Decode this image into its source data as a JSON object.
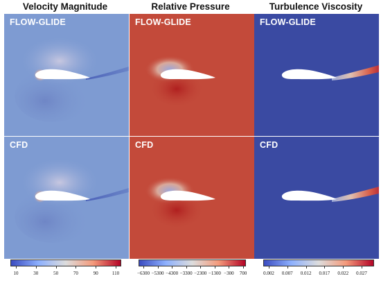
{
  "columns": [
    {
      "title": "Velocity Magnitude",
      "top_label": "FLOW-GLIDE",
      "bottom_label": "CFD",
      "colorbar_ticks": [
        "10",
        "30",
        "50",
        "70",
        "90",
        "110"
      ],
      "colormap": [
        "#3b4cc0",
        "#8db0fe",
        "#dddddd",
        "#f49a7b",
        "#b40426"
      ]
    },
    {
      "title": "Relative Pressure",
      "top_label": "FLOW-GLIDE",
      "bottom_label": "CFD",
      "colorbar_ticks": [
        "−6300",
        "−5300",
        "−4300",
        "−3300",
        "−2300",
        "−1300",
        "−300",
        "700"
      ],
      "colormap": [
        "#3b4cc0",
        "#8db0fe",
        "#dddddd",
        "#f49a7b",
        "#b40426"
      ]
    },
    {
      "title": "Turbulence Viscosity",
      "top_label": "FLOW-GLIDE",
      "bottom_label": "CFD",
      "colorbar_ticks": [
        "0.002",
        "0.007",
        "0.012",
        "0.017",
        "0.022",
        "0.027"
      ],
      "colormap": [
        "#3b4cc0",
        "#8db0fe",
        "#dddddd",
        "#f49a7b",
        "#b40426"
      ]
    }
  ],
  "field_colors": {
    "velocity_background": "#7e9bd2",
    "pressure_background": "#c34a3a",
    "viscosity_background": "#3a4aa2"
  }
}
